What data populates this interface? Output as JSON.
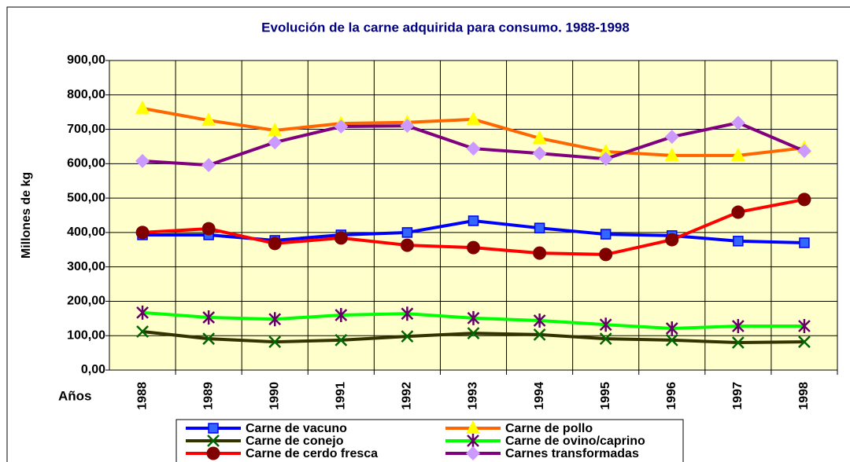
{
  "chart_data": {
    "type": "line",
    "title": "Evolución de la carne adquirida para consumo. 1988-1998",
    "y_label": "Millones de kg",
    "x_label": "Años",
    "categories": [
      "1988",
      "1989",
      "1990",
      "1991",
      "1992",
      "1993",
      "1994",
      "1995",
      "1996",
      "1997",
      "1998"
    ],
    "ylim": [
      0,
      900
    ],
    "yticks": [
      {
        "value": 0,
        "label": "0,00"
      },
      {
        "value": 100,
        "label": "100,00"
      },
      {
        "value": 200,
        "label": "200,00"
      },
      {
        "value": 300,
        "label": "300,00"
      },
      {
        "value": 400,
        "label": "400,00"
      },
      {
        "value": 500,
        "label": "500,00"
      },
      {
        "value": 600,
        "label": "600,00"
      },
      {
        "value": 700,
        "label": "700,00"
      },
      {
        "value": 800,
        "label": "800,00"
      },
      {
        "value": 900,
        "label": "900,00"
      }
    ],
    "grid": true,
    "series": [
      {
        "name": "Carne de vacuno",
        "color": "#0000ff",
        "marker": "square",
        "marker_color": "#3366ff",
        "values": [
          393,
          393,
          377,
          393,
          400,
          434,
          413,
          395,
          391,
          375,
          370
        ]
      },
      {
        "name": "Carne de pollo",
        "color": "#ff6600",
        "marker": "triangle",
        "marker_color": "#ffff00",
        "values": [
          761,
          726,
          697,
          717,
          720,
          729,
          674,
          635,
          624,
          624,
          646
        ]
      },
      {
        "name": "Carne de conejo",
        "color": "#333300",
        "marker": "x",
        "marker_color": "#006600",
        "values": [
          112,
          91,
          82,
          87,
          98,
          107,
          103,
          91,
          87,
          80,
          82
        ]
      },
      {
        "name": "Carne de ovino/caprino",
        "color": "#00ff00",
        "marker": "asterisk",
        "marker_color": "#660066",
        "values": [
          167,
          153,
          148,
          160,
          164,
          151,
          144,
          132,
          121,
          128,
          128
        ]
      },
      {
        "name": "Carne de cerdo fresca",
        "color": "#ff0000",
        "marker": "circle",
        "marker_color": "#800000",
        "values": [
          400,
          411,
          368,
          384,
          363,
          356,
          340,
          336,
          379,
          459,
          496
        ]
      },
      {
        "name": "Carnes transformadas",
        "color": "#800080",
        "marker": "diamond",
        "marker_color": "#cc99ff",
        "values": [
          608,
          596,
          662,
          708,
          710,
          644,
          630,
          614,
          678,
          719,
          637
        ]
      }
    ]
  }
}
